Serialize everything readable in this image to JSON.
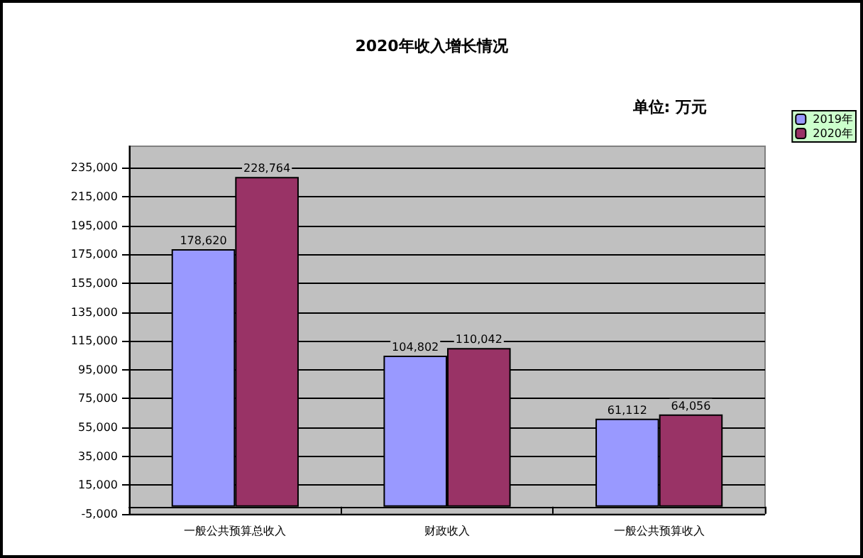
{
  "chart_data": {
    "type": "bar",
    "title": "2020年收入增长情况",
    "annotations": [
      "单位: 万元"
    ],
    "categories": [
      "一般公共预算总收入",
      "财政收入",
      "一般公共预算收入"
    ],
    "series": [
      {
        "name": "2019年",
        "color": "#9999ff",
        "values": [
          178620,
          104802,
          61112
        ],
        "value_labels": [
          "178,620",
          "104,802",
          "61,112"
        ]
      },
      {
        "name": "2020年",
        "color": "#993366",
        "values": [
          228764,
          110042,
          64056
        ],
        "value_labels": [
          "228,764",
          "110,042",
          "64,056"
        ]
      }
    ],
    "ylim": [
      -5000,
      250000
    ],
    "yticks": [
      {
        "value": -5000,
        "label": "-5,000"
      },
      {
        "value": 15000,
        "label": "15,000"
      },
      {
        "value": 35000,
        "label": "35,000"
      },
      {
        "value": 55000,
        "label": "55,000"
      },
      {
        "value": 75000,
        "label": "75,000"
      },
      {
        "value": 95000,
        "label": "95,000"
      },
      {
        "value": 115000,
        "label": "115,000"
      },
      {
        "value": 135000,
        "label": "135,000"
      },
      {
        "value": 155000,
        "label": "155,000"
      },
      {
        "value": 175000,
        "label": "175,000"
      },
      {
        "value": 195000,
        "label": "195,000"
      },
      {
        "value": 215000,
        "label": "215,000"
      },
      {
        "value": 235000,
        "label": "235,000"
      }
    ],
    "grid": "y",
    "legend": "top right"
  }
}
